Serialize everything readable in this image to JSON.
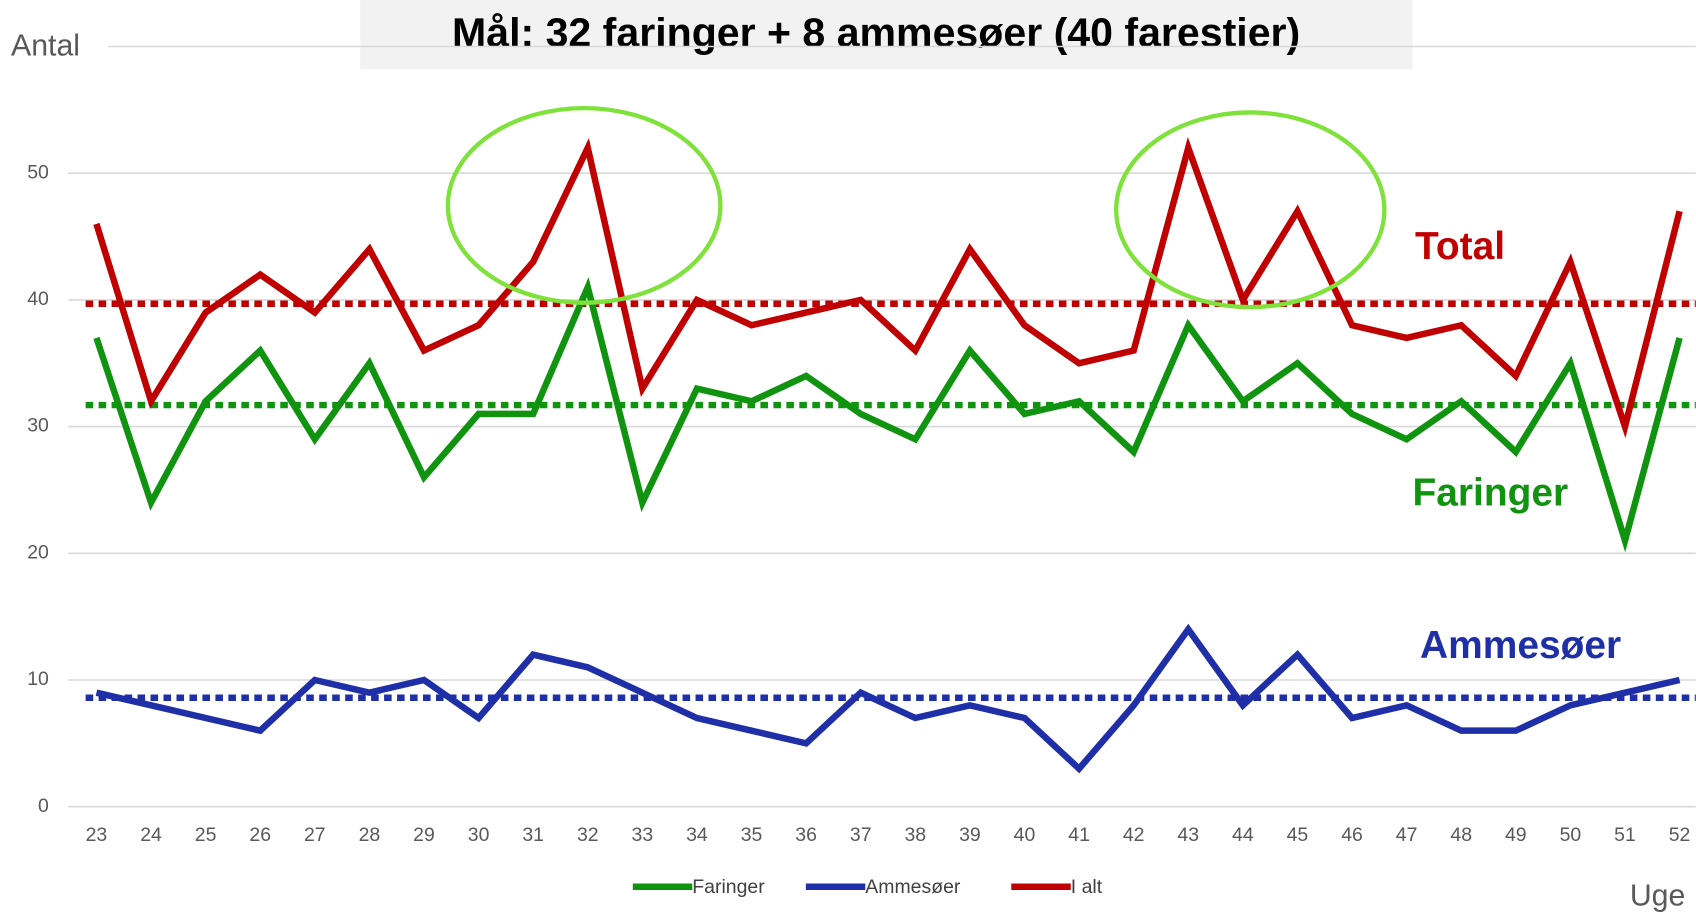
{
  "chart_data": {
    "type": "line",
    "title": "Mål: 32 faringer + 8 ammesøer (40 farestier)",
    "y_label": "Antal",
    "x_label": "Uge",
    "categories": [
      "23",
      "24",
      "25",
      "26",
      "27",
      "28",
      "29",
      "30",
      "31",
      "32",
      "33",
      "34",
      "35",
      "36",
      "37",
      "38",
      "39",
      "40",
      "41",
      "42",
      "43",
      "44",
      "45",
      "46",
      "47",
      "48",
      "49",
      "50",
      "51",
      "52"
    ],
    "series": [
      {
        "name": "Faringer",
        "color": "#109410",
        "values": [
          37,
          24,
          32,
          36,
          29,
          35,
          26,
          31,
          31,
          41,
          24,
          33,
          32,
          34,
          31,
          29,
          36,
          31,
          32,
          28,
          38,
          32,
          35,
          31,
          29,
          32,
          28,
          35,
          21,
          37
        ]
      },
      {
        "name": "Ammesøer",
        "color": "#1f2fa8",
        "values": [
          9,
          8,
          7,
          6,
          10,
          9,
          10,
          7,
          12,
          11,
          9,
          7,
          6,
          5,
          9,
          7,
          8,
          7,
          3,
          8,
          14,
          8,
          12,
          7,
          8,
          6,
          6,
          8,
          9,
          10
        ]
      },
      {
        "name": "I alt",
        "color": "#c00000",
        "values": [
          46,
          32,
          39,
          42,
          39,
          44,
          36,
          38,
          43,
          52,
          33,
          40,
          38,
          39,
          40,
          36,
          44,
          38,
          35,
          36,
          52,
          40,
          47,
          38,
          37,
          38,
          34,
          43,
          30,
          47
        ]
      }
    ],
    "reference_lines": [
      {
        "value": 39.7,
        "color": "#c00000"
      },
      {
        "value": 31.7,
        "color": "#109410"
      },
      {
        "value": 8.6,
        "color": "#1f2fa8"
      }
    ],
    "annotations": [
      {
        "text": "Total",
        "color": "#c00000"
      },
      {
        "text": "Faringer",
        "color": "#109410"
      },
      {
        "text": "Ammesøer",
        "color": "#1f2fa8"
      }
    ],
    "ylim": [
      0,
      60
    ],
    "yticks": [
      0,
      10,
      20,
      30,
      40,
      50
    ],
    "grid": true,
    "legend": "bottom"
  }
}
